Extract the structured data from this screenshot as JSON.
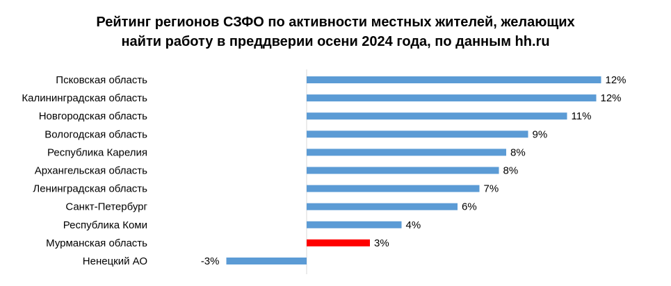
{
  "chart_data": {
    "type": "bar",
    "orientation": "horizontal",
    "title_line1": "Рейтинг регионов СЗФО по активности местных жителей, желающих",
    "title_line2": "найти работу в преддверии осени 2024 года, по данным hh.ru",
    "categories": [
      "Псковская область",
      "Калининградская область",
      "Новгородская область",
      "Вологодская область",
      "Республика Карелия",
      "Архангельская область",
      "Ленинградская область",
      "Санкт-Петербург",
      "Республика Коми",
      "Мурманская область",
      "Ненецкий АО"
    ],
    "values": [
      12.1,
      11.9,
      10.7,
      9.1,
      8.2,
      7.9,
      7.1,
      6.2,
      3.9,
      2.6,
      -3.3
    ],
    "value_labels": [
      "12%",
      "12%",
      "11%",
      "9%",
      "8%",
      "8%",
      "7%",
      "6%",
      "4%",
      "3%",
      "-3%"
    ],
    "highlight_index": 9,
    "bar_color": "#5B9BD5",
    "highlight_color": "#FF0000",
    "axis_color": "#D9D9D9",
    "grid": false,
    "legend": "none"
  }
}
